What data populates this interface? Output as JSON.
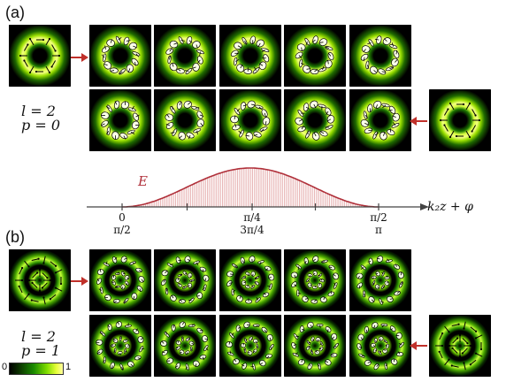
{
  "panels": {
    "a": {
      "label": "(a)",
      "l": "l = 2",
      "p": "p = 0",
      "rings": 1
    },
    "b": {
      "label": "(b)",
      "l": "l = 2",
      "p": "p = 1",
      "rings": 2
    }
  },
  "plot": {
    "curve_label": "E",
    "axis_label": "k₂z + φ",
    "ticks_top": [
      "0",
      "π/4",
      "π/2"
    ],
    "ticks_bottom": [
      "π/2",
      "3π/4",
      "π"
    ]
  },
  "colorbar": {
    "min": "0",
    "max": "1"
  },
  "colors": {
    "arrow": "#c0302a",
    "curve": "#b0303a",
    "fill": "#e8b8b8"
  }
}
